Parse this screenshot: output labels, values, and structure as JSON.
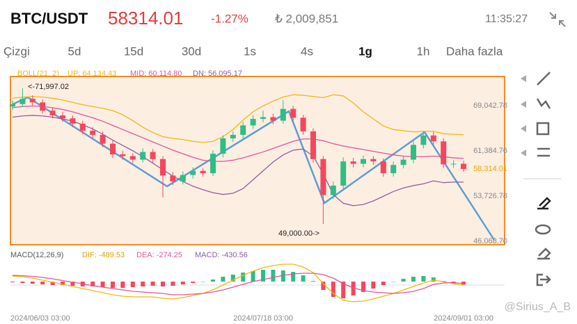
{
  "header": {
    "symbol": "BTC/USDT",
    "price": 58314.01,
    "change": "-1.27%",
    "volume": "₺ 2,009,851",
    "time": "11:35:27"
  },
  "tabs": [
    "Çizgi",
    "5d",
    "15d",
    "30d",
    "1s",
    "4s",
    "1g",
    "1h",
    "Daha fazla"
  ],
  "active_tab_index": 6,
  "watermark": "@Sirius_A_B",
  "chart_data": [
    {
      "type": "candlestick",
      "legend": [
        "BOLL(21, 2)",
        "UP: 64,134.43",
        "MID: 60,114.80",
        "DN: 56,095.17"
      ],
      "categories": [
        "2024/06/03 03:00",
        null,
        null,
        null,
        null,
        null,
        null,
        null,
        null,
        null,
        null,
        null,
        null,
        null,
        null,
        null,
        null,
        null,
        null,
        null,
        null,
        null,
        null,
        null,
        null,
        "2024/07/18 03:00",
        null,
        null,
        null,
        null,
        null,
        null,
        null,
        null,
        null,
        null,
        null,
        null,
        null,
        null,
        null,
        null,
        null,
        null,
        null,
        "2024/09/01 03:00"
      ],
      "open": [
        68900,
        69300,
        70200,
        69600,
        68200,
        67400,
        66900,
        66000,
        64800,
        64100,
        62600,
        60800,
        60500,
        59900,
        61200,
        60000,
        57200,
        56200,
        57300,
        58000,
        57600,
        60900,
        63500,
        64100,
        65700,
        66800,
        67100,
        66500,
        68500,
        67000,
        64700,
        60000,
        53900,
        55500,
        59600,
        59200,
        60000,
        59600,
        57600,
        59000,
        59900,
        62400,
        64000,
        63000,
        59100,
        59200
      ],
      "high": [
        69900,
        71997.02,
        70800,
        70100,
        68800,
        68000,
        67400,
        66500,
        65400,
        64700,
        63100,
        61400,
        61000,
        61800,
        61700,
        60500,
        57800,
        57900,
        58600,
        58500,
        61500,
        64000,
        64700,
        66300,
        67400,
        68200,
        67700,
        70000,
        69000,
        67500,
        65200,
        60500,
        56200,
        60300,
        60200,
        60600,
        60500,
        60100,
        59600,
        60500,
        63000,
        64700,
        64600,
        63500,
        59800,
        59700
      ],
      "low": [
        68300,
        68800,
        69000,
        67700,
        66900,
        66300,
        65400,
        64200,
        63500,
        62000,
        60200,
        59900,
        59300,
        59400,
        59400,
        53500,
        55600,
        55700,
        56700,
        57000,
        57100,
        60300,
        62900,
        63500,
        65100,
        66200,
        65900,
        66000,
        66400,
        64100,
        59400,
        49000,
        53300,
        55000,
        58600,
        58600,
        59000,
        57000,
        57000,
        58400,
        59300,
        61800,
        62400,
        58500,
        58500,
        57800
      ],
      "close": [
        69300,
        70200,
        69600,
        68200,
        67400,
        66900,
        66000,
        64800,
        64100,
        62600,
        60800,
        60500,
        59900,
        61200,
        60000,
        57200,
        56200,
        57300,
        58000,
        57600,
        60900,
        63500,
        64100,
        65700,
        66800,
        67100,
        66500,
        68500,
        67000,
        64700,
        60000,
        53900,
        55500,
        59600,
        59200,
        60000,
        59600,
        57600,
        59000,
        59900,
        62400,
        64000,
        63000,
        59100,
        59200,
        58314.01
      ],
      "up_color": "#2ebd85",
      "down_color": "#f6465d",
      "series": [
        {
          "name": "UP",
          "color": "#f0b90b",
          "values": [
            70300,
            70500,
            70600,
            70500,
            70300,
            70000,
            69600,
            69200,
            68900,
            68600,
            68200,
            67500,
            66500,
            65400,
            64500,
            63800,
            63500,
            63300,
            63000,
            62800,
            63000,
            63800,
            65000,
            66600,
            68000,
            69000,
            69800,
            70500,
            70900,
            70800,
            70600,
            70400,
            70900,
            70700,
            69500,
            68000,
            66800,
            65600,
            65000,
            64800,
            64600,
            64700,
            64700,
            64300,
            64200,
            64134.43
          ]
        },
        {
          "name": "MID",
          "color": "#e0559a",
          "values": [
            68700,
            68900,
            69000,
            68900,
            68700,
            68400,
            68000,
            67500,
            67000,
            66400,
            65700,
            65000,
            64300,
            63600,
            62900,
            62200,
            61500,
            60900,
            60300,
            59800,
            59600,
            59600,
            59800,
            60200,
            60700,
            61200,
            61800,
            62400,
            63000,
            63400,
            63400,
            63100,
            62600,
            62200,
            61900,
            61600,
            61300,
            61000,
            60700,
            60500,
            60400,
            60400,
            60500,
            60400,
            60200,
            60114.8
          ]
        },
        {
          "name": "DN",
          "color": "#8e5ea2",
          "values": [
            67100,
            67300,
            67400,
            67300,
            67100,
            66800,
            66400,
            65800,
            65100,
            64200,
            63200,
            62300,
            61400,
            60400,
            59300,
            58200,
            57100,
            56200,
            55400,
            54800,
            54300,
            54000,
            54200,
            55000,
            56500,
            58000,
            59500,
            60700,
            61500,
            61700,
            60500,
            57500,
            54000,
            52500,
            52100,
            52300,
            52900,
            53700,
            54500,
            55100,
            55500,
            55800,
            56300,
            56000,
            56100,
            56095.17
          ]
        }
      ],
      "ylim": [
        45480,
        73990
      ],
      "yticks": [
        {
          "value": 69042.78,
          "label": "69,042.78"
        },
        {
          "value": 61384.76,
          "label": "61,384.76"
        },
        {
          "value": 53726.78,
          "label": "53,726.78"
        },
        {
          "value": 46068.7,
          "label": "46,068.70"
        }
      ],
      "current_price": {
        "value": 58314.01,
        "label": "58,314.01"
      },
      "annotations": [
        {
          "value": 71997.02,
          "label": "<-71,997.02"
        },
        {
          "value": 49000,
          "label": "49,000.00->"
        }
      ]
    },
    {
      "type": "macd",
      "legend": [
        "MACD(12,26,9)",
        "DIF: -489.53",
        "DEA: -274.25",
        "MACD: -430.56"
      ],
      "histogram": [
        -100,
        -200,
        -300,
        -400,
        -500,
        -500,
        -600,
        -700,
        -700,
        -800,
        -900,
        -900,
        -800,
        -700,
        -600,
        -700,
        -600,
        -400,
        -200,
        0,
        300,
        700,
        1000,
        1300,
        1500,
        1700,
        1700,
        1600,
        1400,
        900,
        100,
        -1200,
        -2200,
        -2400,
        -2000,
        -1500,
        -1000,
        -500,
        0,
        400,
        700,
        800,
        600,
        100,
        -300,
        -430.56
      ],
      "series": [
        {
          "name": "DIF",
          "color": "#f0b90b",
          "values": [
            800,
            700,
            500,
            200,
            -100,
            -400,
            -700,
            -1000,
            -1300,
            -1600,
            -1900,
            -2100,
            -2200,
            -2200,
            -2200,
            -2400,
            -2500,
            -2300,
            -2000,
            -1700,
            -1200,
            -500,
            200,
            900,
            1500,
            2000,
            2300,
            2500,
            2500,
            2100,
            1300,
            -300,
            -1700,
            -2700,
            -2900,
            -2800,
            -2500,
            -2100,
            -1700,
            -1200,
            -700,
            -200,
            200,
            0,
            -300,
            -489.53
          ]
        },
        {
          "name": "DEA",
          "color": "#e0559a",
          "values": [
            900,
            850,
            750,
            600,
            400,
            150,
            -100,
            -300,
            -600,
            -800,
            -1000,
            -1200,
            -1400,
            -1500,
            -1600,
            -1700,
            -1900,
            -1900,
            -1800,
            -1700,
            -1500,
            -1200,
            -800,
            -400,
            0,
            300,
            600,
            900,
            1100,
            1200,
            1200,
            1000,
            500,
            -300,
            -900,
            -1300,
            -1500,
            -1600,
            -1700,
            -1600,
            -1400,
            -1000,
            -400,
            -200,
            -150,
            -274.25
          ]
        }
      ],
      "legend_colors": [
        "#555555",
        "#e0a000",
        "#e0559a",
        "#8e5ea2"
      ],
      "ylim": [
        -3500,
        3000
      ]
    }
  ]
}
